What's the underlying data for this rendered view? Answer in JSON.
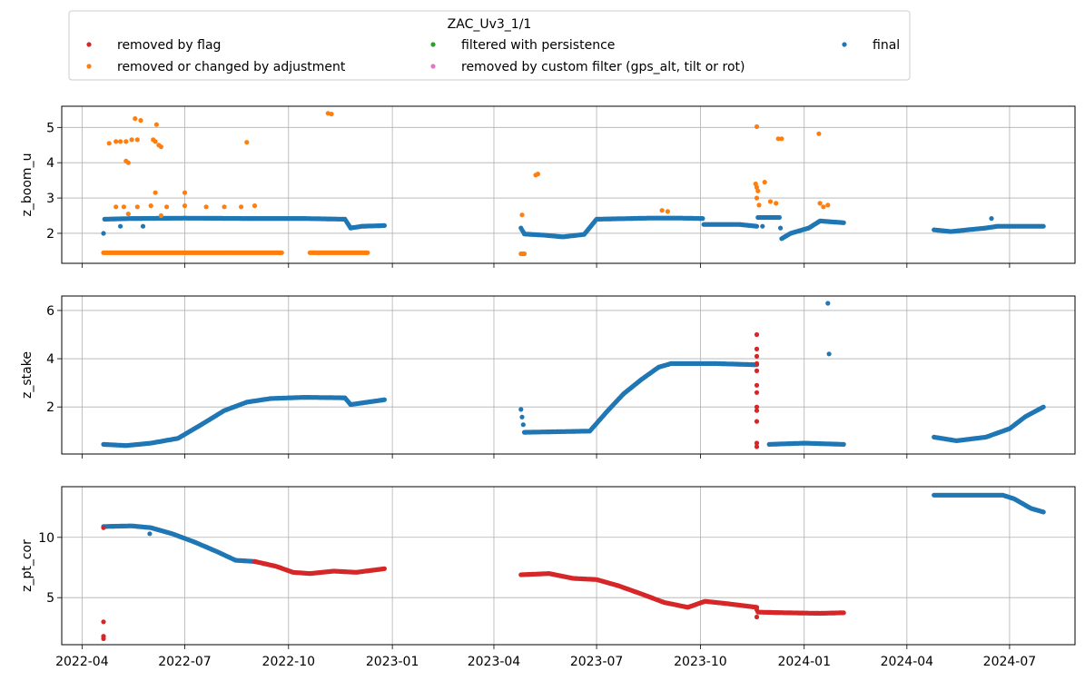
{
  "legend": {
    "title": "ZAC_Uv3_1/1",
    "placement": "top",
    "items": [
      {
        "label": "removed by flag",
        "color": "#d62728"
      },
      {
        "label": "filtered with persistence",
        "color": "#2ca02c"
      },
      {
        "label": "final",
        "color": "#1f77b4"
      },
      {
        "label": "removed or changed by adjustment",
        "color": "#ff7f0e"
      },
      {
        "label": "removed by custom filter (gps_alt, tilt or rot)",
        "color": "#e377c2"
      }
    ]
  },
  "chart_data": {
    "type": "scatter",
    "shared_x": true,
    "grid": true,
    "x_ticks": [
      "2022-04",
      "2022-07",
      "2022-10",
      "2023-01",
      "2023-04",
      "2023-07",
      "2023-10",
      "2024-01",
      "2024-04",
      "2024-07"
    ],
    "xlim": [
      "2022-03-14",
      "2024-08-28"
    ],
    "panels": [
      {
        "ylabel": "z_boom_u",
        "ylim": [
          1.15,
          5.6
        ],
        "yticks": [
          2,
          3,
          4,
          5
        ],
        "series": [
          {
            "name": "final",
            "color": "#1f77b4",
            "segments": [
              [
                [
                  "2022-04-20",
                  2.0
                ],
                [
                  "2022-04-21",
                  2.4
                ],
                [
                  "2022-05-15",
                  2.42
                ],
                [
                  "2022-07-01",
                  2.43
                ],
                [
                  "2022-09-01",
                  2.42
                ],
                [
                  "2022-10-15",
                  2.42
                ],
                [
                  "2022-11-20",
                  2.4
                ],
                [
                  "2022-11-25",
                  2.15
                ],
                [
                  "2022-12-05",
                  2.2
                ],
                [
                  "2022-12-25",
                  2.22
                ]
              ],
              [
                [
                  "2023-04-25",
                  2.15
                ],
                [
                  "2023-04-28",
                  1.98
                ],
                [
                  "2023-05-15",
                  1.95
                ],
                [
                  "2023-06-01",
                  1.9
                ],
                [
                  "2023-06-20",
                  1.97
                ],
                [
                  "2023-07-01",
                  2.4
                ],
                [
                  "2023-08-15",
                  2.43
                ],
                [
                  "2023-09-15",
                  2.43
                ],
                [
                  "2023-10-03",
                  2.42
                ],
                [
                  "2023-10-04",
                  2.25
                ],
                [
                  "2023-11-05",
                  2.25
                ],
                [
                  "2023-11-20",
                  2.2
                ],
                [
                  "2023-11-21",
                  2.45
                ],
                [
                  "2023-12-10",
                  2.45
                ],
                [
                  "2023-12-12",
                  1.85
                ],
                [
                  "2023-12-20",
                  2.0
                ],
                [
                  "2024-01-05",
                  2.15
                ],
                [
                  "2024-01-15",
                  2.35
                ],
                [
                  "2024-02-05",
                  2.3
                ]
              ],
              [
                [
                  "2024-04-25",
                  2.1
                ],
                [
                  "2024-05-10",
                  2.05
                ],
                [
                  "2024-05-25",
                  2.1
                ],
                [
                  "2024-06-10",
                  2.15
                ],
                [
                  "2024-06-20",
                  2.2
                ],
                [
                  "2024-07-31",
                  2.2
                ]
              ]
            ],
            "points": [
              [
                "2022-05-05",
                2.2
              ],
              [
                "2022-05-25",
                2.2
              ],
              [
                "2023-11-25",
                2.2
              ],
              [
                "2024-06-15",
                2.42
              ]
            ]
          },
          {
            "name": "removed or changed by adjustment",
            "color": "#ff7f0e",
            "segments": [
              [
                [
                  "2022-04-20",
                  1.45
                ],
                [
                  "2022-09-25",
                  1.45
                ]
              ],
              [
                [
                  "2022-10-20",
                  1.45
                ],
                [
                  "2022-12-10",
                  1.45
                ]
              ],
              [
                [
                  "2023-04-25",
                  1.42
                ],
                [
                  "2023-04-28",
                  1.42
                ]
              ]
            ],
            "points": [
              [
                "2022-04-25",
                4.55
              ],
              [
                "2022-05-01",
                4.6
              ],
              [
                "2022-05-05",
                4.6
              ],
              [
                "2022-05-10",
                4.6
              ],
              [
                "2022-05-15",
                4.65
              ],
              [
                "2022-05-20",
                4.65
              ],
              [
                "2022-05-10",
                4.05
              ],
              [
                "2022-05-12",
                4.0
              ],
              [
                "2022-05-18",
                5.25
              ],
              [
                "2022-05-23",
                5.2
              ],
              [
                "2022-06-03",
                4.65
              ],
              [
                "2022-06-05",
                4.6
              ],
              [
                "2022-06-08",
                4.5
              ],
              [
                "2022-06-10",
                4.45
              ],
              [
                "2022-06-06",
                5.08
              ],
              [
                "2022-08-25",
                4.58
              ],
              [
                "2022-11-05",
                5.4
              ],
              [
                "2022-11-08",
                5.38
              ],
              [
                "2022-05-01",
                2.75
              ],
              [
                "2022-05-08",
                2.75
              ],
              [
                "2022-05-20",
                2.75
              ],
              [
                "2022-06-01",
                2.78
              ],
              [
                "2022-06-15",
                2.75
              ],
              [
                "2022-07-01",
                2.78
              ],
              [
                "2022-07-20",
                2.75
              ],
              [
                "2022-08-05",
                2.75
              ],
              [
                "2022-08-20",
                2.75
              ],
              [
                "2022-09-01",
                2.78
              ],
              [
                "2022-06-05",
                3.15
              ],
              [
                "2022-07-01",
                3.15
              ],
              [
                "2022-05-12",
                2.55
              ],
              [
                "2022-06-10",
                2.5
              ],
              [
                "2023-04-26",
                2.52
              ],
              [
                "2023-05-08",
                3.65
              ],
              [
                "2023-05-10",
                3.68
              ],
              [
                "2023-08-28",
                2.65
              ],
              [
                "2023-09-02",
                2.62
              ],
              [
                "2023-11-20",
                5.02
              ],
              [
                "2023-11-19",
                3.4
              ],
              [
                "2023-11-20",
                3.3
              ],
              [
                "2023-11-21",
                3.2
              ],
              [
                "2023-11-20",
                3.0
              ],
              [
                "2023-11-22",
                2.8
              ],
              [
                "2023-11-27",
                3.45
              ],
              [
                "2023-12-02",
                2.9
              ],
              [
                "2023-12-07",
                2.85
              ],
              [
                "2023-12-09",
                4.68
              ],
              [
                "2023-12-12",
                4.68
              ],
              [
                "2024-01-14",
                4.82
              ],
              [
                "2024-01-15",
                2.85
              ],
              [
                "2024-01-18",
                2.75
              ],
              [
                "2024-01-22",
                2.8
              ]
            ]
          }
        ]
      },
      {
        "ylabel": "z_stake",
        "ylim": [
          0.05,
          6.6
        ],
        "yticks": [
          2,
          4,
          6
        ],
        "series": [
          {
            "name": "final",
            "color": "#1f77b4",
            "segments": [
              [
                [
                  "2022-04-20",
                  0.45
                ],
                [
                  "2022-05-10",
                  0.4
                ],
                [
                  "2022-06-01",
                  0.5
                ],
                [
                  "2022-06-25",
                  0.7
                ],
                [
                  "2022-07-15",
                  1.25
                ],
                [
                  "2022-08-05",
                  1.85
                ],
                [
                  "2022-08-25",
                  2.2
                ],
                [
                  "2022-09-15",
                  2.35
                ],
                [
                  "2022-10-15",
                  2.4
                ],
                [
                  "2022-11-20",
                  2.38
                ],
                [
                  "2022-11-25",
                  2.1
                ],
                [
                  "2022-12-25",
                  2.3
                ]
              ],
              [
                [
                  "2023-04-25",
                  1.9
                ],
                [
                  "2023-04-28",
                  0.95
                ],
                [
                  "2023-06-25",
                  1.0
                ],
                [
                  "2023-07-10",
                  1.8
                ],
                [
                  "2023-07-25",
                  2.55
                ],
                [
                  "2023-08-10",
                  3.15
                ],
                [
                  "2023-08-25",
                  3.65
                ],
                [
                  "2023-09-05",
                  3.8
                ],
                [
                  "2023-10-15",
                  3.8
                ],
                [
                  "2023-11-20",
                  3.75
                ]
              ],
              [
                [
                  "2023-12-01",
                  0.45
                ],
                [
                  "2024-01-01",
                  0.5
                ],
                [
                  "2024-02-05",
                  0.45
                ]
              ],
              [
                [
                  "2024-04-25",
                  0.75
                ],
                [
                  "2024-05-15",
                  0.6
                ],
                [
                  "2024-06-10",
                  0.75
                ],
                [
                  "2024-07-01",
                  1.1
                ],
                [
                  "2024-07-15",
                  1.6
                ],
                [
                  "2024-07-31",
                  2.0
                ]
              ]
            ],
            "points": [
              [
                "2024-01-22",
                6.3
              ],
              [
                "2024-01-23",
                4.2
              ]
            ]
          },
          {
            "name": "removed by flag",
            "color": "#d62728",
            "segments": [],
            "points": [
              [
                "2023-11-20",
                5.0
              ],
              [
                "2023-11-20",
                4.4
              ],
              [
                "2023-11-20",
                4.1
              ],
              [
                "2023-11-20",
                3.8
              ],
              [
                "2023-11-20",
                3.5
              ],
              [
                "2023-11-20",
                2.9
              ],
              [
                "2023-11-20",
                2.6
              ],
              [
                "2023-11-20",
                2.0
              ],
              [
                "2023-11-20",
                1.85
              ],
              [
                "2023-11-20",
                1.4
              ],
              [
                "2023-11-20",
                0.5
              ],
              [
                "2023-11-20",
                0.35
              ]
            ]
          }
        ]
      },
      {
        "ylabel": "z_pt_cor",
        "ylim": [
          1.1,
          14.2
        ],
        "yticks": [
          5,
          10
        ],
        "series": [
          {
            "name": "final",
            "color": "#1f77b4",
            "segments": [
              [
                [
                  "2022-04-20",
                  10.9
                ],
                [
                  "2022-05-15",
                  10.95
                ],
                [
                  "2022-06-01",
                  10.8
                ],
                [
                  "2022-06-20",
                  10.3
                ],
                [
                  "2022-07-10",
                  9.6
                ],
                [
                  "2022-07-30",
                  8.8
                ],
                [
                  "2022-08-15",
                  8.1
                ],
                [
                  "2022-09-01",
                  8.0
                ]
              ],
              [
                [
                  "2024-04-25",
                  13.5
                ],
                [
                  "2024-06-25",
                  13.5
                ],
                [
                  "2024-07-05",
                  13.2
                ],
                [
                  "2024-07-20",
                  12.4
                ],
                [
                  "2024-07-31",
                  12.1
                ]
              ]
            ],
            "points": [
              [
                "2022-05-31",
                10.3
              ]
            ]
          },
          {
            "name": "removed by flag",
            "color": "#d62728",
            "segments": [
              [
                [
                  "2022-09-01",
                  8.0
                ],
                [
                  "2022-09-20",
                  7.6
                ],
                [
                  "2022-10-05",
                  7.1
                ],
                [
                  "2022-10-20",
                  7.0
                ],
                [
                  "2022-11-10",
                  7.2
                ],
                [
                  "2022-11-30",
                  7.1
                ],
                [
                  "2022-12-25",
                  7.4
                ]
              ],
              [
                [
                  "2023-04-25",
                  6.9
                ],
                [
                  "2023-05-20",
                  7.0
                ],
                [
                  "2023-06-10",
                  6.6
                ],
                [
                  "2023-07-01",
                  6.5
                ],
                [
                  "2023-07-20",
                  6.0
                ],
                [
                  "2023-08-10",
                  5.3
                ],
                [
                  "2023-08-30",
                  4.6
                ],
                [
                  "2023-09-20",
                  4.2
                ],
                [
                  "2023-10-05",
                  4.7
                ],
                [
                  "2023-10-25",
                  4.5
                ],
                [
                  "2023-11-20",
                  4.2
                ]
              ],
              [
                [
                  "2023-11-21",
                  3.8
                ],
                [
                  "2023-12-15",
                  3.75
                ],
                [
                  "2024-01-15",
                  3.7
                ],
                [
                  "2024-02-05",
                  3.75
                ]
              ]
            ],
            "points": [
              [
                "2022-04-20",
                10.8
              ],
              [
                "2022-04-20",
                1.6
              ],
              [
                "2022-04-20",
                1.8
              ],
              [
                "2022-04-20",
                3.0
              ],
              [
                "2023-11-20",
                3.4
              ],
              [
                "2023-11-20",
                4.0
              ]
            ]
          }
        ]
      }
    ]
  }
}
